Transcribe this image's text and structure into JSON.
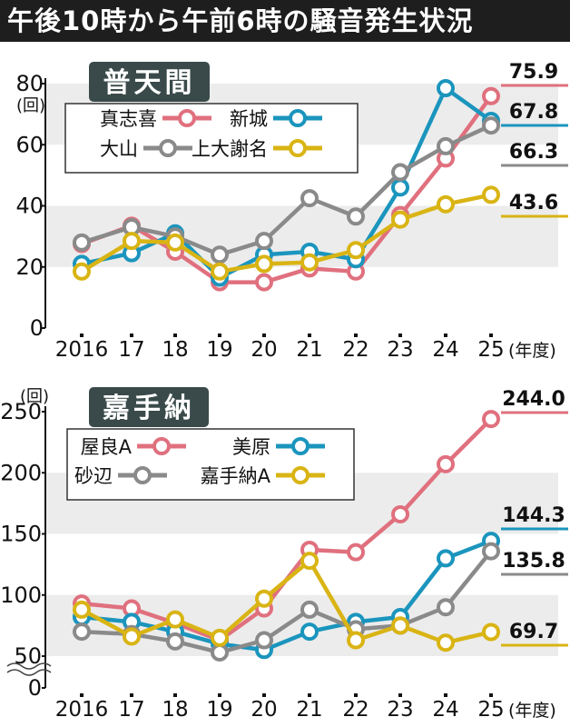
{
  "title": "午後10時から午前6時の騒音発生状況",
  "chart_data": [
    {
      "type": "line",
      "title": "普天間",
      "ylabel": "(回)",
      "xlabel": "(年度)",
      "categories": [
        "2016",
        "17",
        "18",
        "19",
        "20",
        "21",
        "22",
        "23",
        "24",
        "25"
      ],
      "ylim": [
        0,
        80
      ],
      "yticks": [
        0,
        20,
        40,
        60,
        80
      ],
      "legend_position": "top-left",
      "series": [
        {
          "name": "真志喜",
          "color": "#e0707e",
          "values": [
            27.5,
            33.5,
            25,
            15,
            15,
            19.5,
            18.5,
            37,
            55.5,
            75.9
          ],
          "end_label": "75.9"
        },
        {
          "name": "新城",
          "color": "#1b95bd",
          "values": [
            21,
            24.5,
            31,
            16.5,
            24,
            25,
            22.5,
            46,
            78.5,
            67.8
          ],
          "end_label": "67.8"
        },
        {
          "name": "大山",
          "color": "#8a8a8a",
          "values": [
            28,
            33,
            30,
            24,
            28.5,
            42.5,
            36.5,
            51,
            59.5,
            66.3
          ],
          "end_label": "66.3"
        },
        {
          "name": "上大謝名",
          "color": "#d9b414",
          "values": [
            18.5,
            28.5,
            28,
            18.5,
            21,
            21.5,
            25.5,
            35.5,
            40.5,
            43.6
          ],
          "end_label": "43.6"
        }
      ]
    },
    {
      "type": "line",
      "title": "嘉手納",
      "ylabel": "(回)",
      "xlabel": "(年度)",
      "categories": [
        "2016",
        "17",
        "18",
        "19",
        "20",
        "21",
        "22",
        "23",
        "24",
        "25"
      ],
      "ylim": [
        0,
        250
      ],
      "yticks": [
        0,
        50,
        100,
        150,
        200,
        250
      ],
      "legend_position": "top-left",
      "series": [
        {
          "name": "屋良A",
          "color": "#e0707e",
          "values": [
            93,
            89,
            77,
            63,
            89,
            137,
            135,
            166,
            207,
            244.0
          ],
          "end_label": "244.0"
        },
        {
          "name": "美原",
          "color": "#1b95bd",
          "values": [
            82,
            78,
            70,
            60,
            55,
            70,
            78,
            82,
            130,
            144.3
          ],
          "end_label": "144.3"
        },
        {
          "name": "砂辺",
          "color": "#8a8a8a",
          "values": [
            70,
            68,
            62,
            53,
            63,
            88,
            72,
            75,
            90,
            135.8
          ],
          "end_label": "135.8"
        },
        {
          "name": "嘉手納A",
          "color": "#d9b414",
          "values": [
            88,
            66,
            80,
            65,
            97,
            128,
            63,
            75,
            61,
            69.7
          ],
          "end_label": "69.7"
        }
      ]
    }
  ]
}
